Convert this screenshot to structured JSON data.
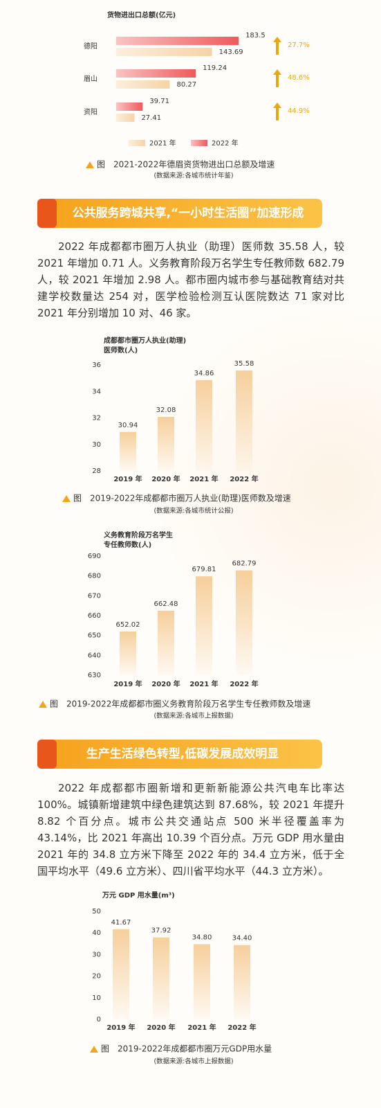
{
  "chart_data": [
    {
      "type": "hbar",
      "title": [
        "货物进出口总额(亿元)"
      ],
      "categories": [
        "德阳",
        "眉山",
        "资阳"
      ],
      "series": [
        {
          "name": "2021 年",
          "color": "#f6d3a6",
          "values": [
            143.69,
            80.27,
            27.41
          ]
        },
        {
          "name": "2022 年",
          "color": "#f0595b",
          "values": [
            183.5,
            119.24,
            39.71
          ]
        }
      ],
      "annotations": [
        "27.7%",
        "48.6%",
        "44.9%"
      ],
      "caption": "图　2021-2022年德眉资货物进出口总额及增速",
      "source": "(数据来源:各城市统计年鉴)"
    },
    {
      "type": "bar",
      "title": [
        "成都都市圈万人执业(助理)",
        "医师数(人)"
      ],
      "categories": [
        "2019 年",
        "2020 年",
        "2021 年",
        "2022 年"
      ],
      "values": [
        30.94,
        32.08,
        34.86,
        35.58
      ],
      "color": "#f6cf9c",
      "ylim": [
        28,
        36
      ],
      "yticks": [
        28,
        30,
        32,
        34,
        36
      ],
      "caption": "图　2019-2022年成都都市圈万人执业(助理)医师数及增速",
      "source": "(数据来源:各城市统计公报)"
    },
    {
      "type": "bar",
      "title": [
        "义务教育阶段万名学生",
        "专任教师数(人)"
      ],
      "categories": [
        "2019 年",
        "2020 年",
        "2021 年",
        "2022 年"
      ],
      "values": [
        652.02,
        662.48,
        679.81,
        682.79
      ],
      "color": "#f6cf9c",
      "ylim": [
        630,
        690
      ],
      "yticks": [
        630,
        640,
        650,
        660,
        670,
        680,
        690
      ],
      "caption": "图　2019-2022年成都都市圈义务教育阶段万名学生专任教师数及增速",
      "source": "(数据来源:各城市上报数据)"
    },
    {
      "type": "bar",
      "title": [
        "万元 GDP 用水量(m³)"
      ],
      "categories": [
        "2019 年",
        "2020 年",
        "2021 年",
        "2022 年"
      ],
      "values": [
        41.67,
        37.92,
        34.8,
        34.4
      ],
      "value_labels": [
        "41.67",
        "37.92",
        "34.80",
        "34.40"
      ],
      "color": "#f6cf9c",
      "ylim": [
        0,
        50
      ],
      "yticks": [
        0,
        10,
        20,
        30,
        40,
        50
      ],
      "caption": "图　2019-2022年成都都市圈万元GDP用水量",
      "source": "(数据来源:各城市上报数据)"
    }
  ],
  "sections": [
    {
      "heading": "公共服务跨城共享,“一小时生活圈”加速形成",
      "paragraph": "2022 年成都都市圈万人执业（助理）医师数 35.58 人，较 2021 年增加 0.71 人。义务教育阶段万名学生专任教师数 682.79 人，较 2021 年增加 2.98 人。都市圈内城市参与基础教育结对共建学校数量达 254 对，医学检验检测互认医院数达 71 家对比 2021 年分别增加 10 对、46 家。"
    },
    {
      "heading": "生产生活绿色转型,低碳发展成效明显",
      "paragraph": "2022 年成都都市圈新增和更新新能源公共汽电车比率达 100%。城镇新增建筑中绿色建筑达到 87.68%，较 2021 年提升 8.82 个百分点。城市公共交通站点 500 米半径覆盖率为 43.14%，比 2021 年高出 10.39 个百分点。万元 GDP 用水量由 2021 年的 34.8 立方米下降至 2022 年的 34.4 立方米，低于全国平均水平（49.6 立方米）、四川省平均水平（44.3 立方米）。"
    }
  ]
}
